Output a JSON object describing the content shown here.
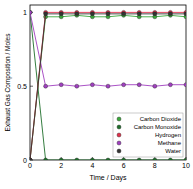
{
  "chart_data": {
    "type": "line",
    "x_label": "Time / Days",
    "y_label": "Exhaust Gas Composition / Moles",
    "x": [
      0,
      1,
      2,
      3,
      4,
      5,
      6,
      7,
      8,
      9,
      10
    ],
    "series": [
      {
        "name": "Carbon Dioxide",
        "color": "#3aa83a",
        "values": [
          0,
          0.97,
          0.97,
          0.98,
          0.97,
          0.97,
          0.98,
          0.97,
          0.97,
          0.98,
          0.97
        ]
      },
      {
        "name": "Carbon Monoxide",
        "color": "#1e6e2a",
        "values": [
          1,
          0,
          0,
          0,
          0,
          0,
          0,
          0,
          0,
          0,
          0
        ]
      },
      {
        "name": "Hydrogen",
        "color": "#e0304a",
        "values": [
          0,
          1,
          1,
          1,
          1,
          1,
          1,
          1,
          1,
          1,
          1
        ]
      },
      {
        "name": "Methane",
        "color": "#a040c0",
        "values": [
          1,
          0.5,
          0.51,
          0.5,
          0.51,
          0.5,
          0.51,
          0.51,
          0.5,
          0.51,
          0.51
        ]
      },
      {
        "name": "Water",
        "color": "#333333",
        "values": [
          0,
          0.99,
          0.99,
          0.99,
          0.99,
          0.99,
          0.99,
          0.99,
          0.99,
          0.99,
          0.99
        ]
      }
    ],
    "xlim": [
      0,
      10
    ],
    "xticks": [
      0,
      2,
      4,
      6,
      8,
      10
    ],
    "ylim": [
      0,
      1.05
    ],
    "yticks": [
      0,
      0.5,
      1
    ],
    "grid": false,
    "legend": "lower right",
    "marker": "circle",
    "line_style": "solid"
  }
}
